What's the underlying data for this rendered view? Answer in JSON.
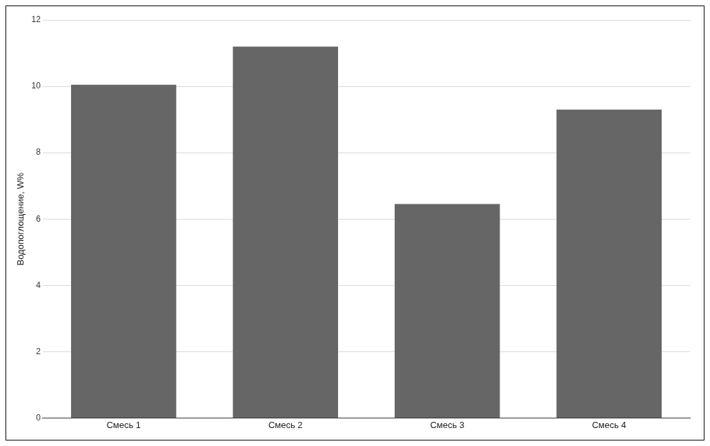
{
  "chart_data": {
    "type": "bar",
    "ylabel": "Водопоглощение, W%",
    "categories": [
      "Смесь 1",
      "Смесь 2",
      "Смесь 3",
      "Смесь 4"
    ],
    "values": [
      10.05,
      11.2,
      6.45,
      9.3
    ],
    "color": "#666666",
    "ylim": [
      0,
      12
    ],
    "yticks": [
      0,
      2,
      4,
      6,
      8,
      10,
      12
    ],
    "grid": "y",
    "legend": false
  }
}
